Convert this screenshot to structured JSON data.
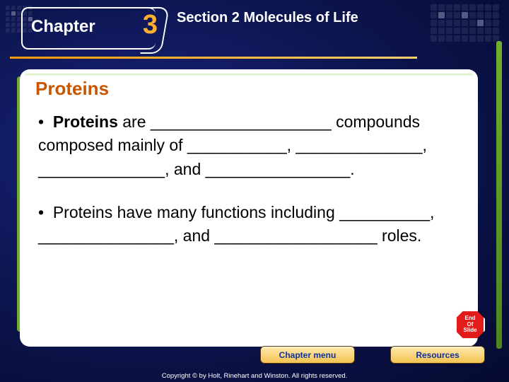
{
  "chapter": {
    "label": "Chapter",
    "number": "3"
  },
  "section": {
    "prefix": "Section 2",
    "title": "Molecules of Life"
  },
  "panel": {
    "title": "Proteins",
    "bullets": [
      "Proteins are ____________________ compounds composed mainly of ___________, ______________, ______________, and ________________.",
      "Proteins have many functions including __________,  _______________, and __________________ roles."
    ],
    "bullet0_lead_bold": "Proteins"
  },
  "buttons": {
    "menu": "Chapter menu",
    "resources": "Resources"
  },
  "stop": {
    "line1": "End",
    "line2": "Of",
    "line3": "Slide"
  },
  "copyright": "Copyright © by Holt, Rinehart and Winston. All rights reserved.",
  "colors": {
    "accent_orange": "#c85500",
    "accent_green": "#6fae2e",
    "title_orange": "#c85500",
    "button_text": "#1030a0"
  }
}
